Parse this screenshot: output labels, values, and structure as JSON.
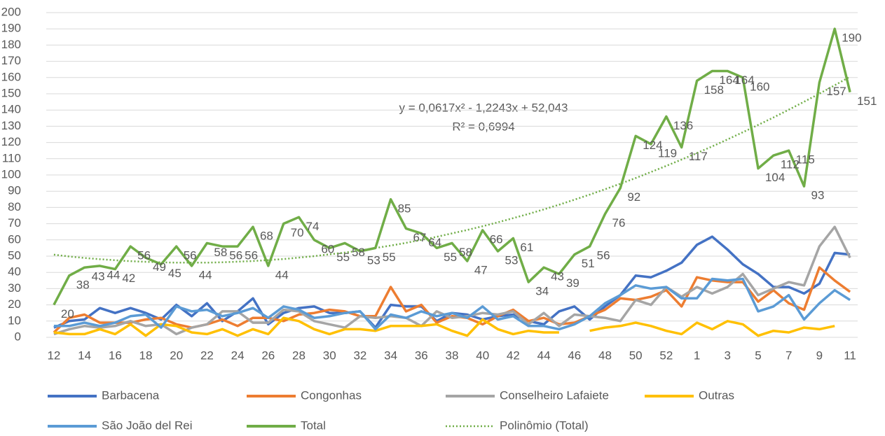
{
  "chart_data": {
    "type": "line",
    "categories": [
      "12",
      null,
      "14",
      null,
      "16",
      null,
      "18",
      null,
      "20",
      null,
      "22",
      null,
      "24",
      null,
      "26",
      null,
      "28",
      null,
      "30",
      null,
      "32",
      null,
      "34",
      null,
      "36",
      null,
      "38",
      null,
      "40",
      null,
      "42",
      null,
      "44",
      null,
      "46",
      null,
      "48",
      null,
      "50",
      null,
      "52",
      null,
      "1",
      null,
      "3",
      null,
      "5",
      null,
      "7",
      null,
      "9",
      null,
      "11"
    ],
    "ylim": [
      0,
      200
    ],
    "yticks": [
      0,
      10,
      20,
      30,
      40,
      50,
      60,
      70,
      80,
      90,
      100,
      110,
      120,
      130,
      140,
      150,
      160,
      170,
      180,
      190,
      200
    ],
    "grid": true,
    "series": [
      {
        "name": "Barbacena",
        "color": "#4472c4",
        "values": [
          6,
          10,
          11,
          18,
          15,
          18,
          15,
          11,
          20,
          13,
          21,
          10,
          16,
          24,
          8,
          15,
          18,
          19,
          15,
          15,
          16,
          6,
          20,
          19,
          19,
          10,
          15,
          14,
          11,
          13,
          14,
          10,
          8,
          16,
          19,
          11,
          19,
          26,
          38,
          37,
          41,
          46,
          57,
          62,
          54,
          45,
          39,
          31,
          31,
          27,
          33,
          52,
          51
        ]
      },
      {
        "name": "Congonhas",
        "color": "#ed7d31",
        "values": [
          3,
          12,
          14,
          9,
          9,
          9,
          11,
          12,
          8,
          6,
          8,
          11,
          7,
          12,
          12,
          10,
          14,
          15,
          17,
          16,
          13,
          13,
          31,
          16,
          20,
          9,
          13,
          12,
          8,
          13,
          17,
          10,
          12,
          8,
          9,
          13,
          17,
          24,
          23,
          25,
          29,
          19,
          37,
          35,
          34,
          34,
          22,
          29,
          21,
          17,
          43,
          35,
          28
        ]
      },
      {
        "name": "Conselheiro Lafaiete",
        "color": "#a5a5a5",
        "values": [
          2,
          5,
          7,
          6,
          7,
          10,
          7,
          8,
          2,
          6,
          8,
          16,
          16,
          9,
          9,
          17,
          16,
          10,
          8,
          6,
          13,
          12,
          13,
          12,
          7,
          16,
          12,
          13,
          15,
          14,
          16,
          8,
          15,
          7,
          14,
          13,
          12,
          10,
          23,
          20,
          31,
          25,
          31,
          27,
          31,
          39,
          26,
          30,
          34,
          32,
          56,
          68,
          49
        ]
      },
      {
        "name": "Outras",
        "color": "#ffc000",
        "values": [
          3,
          2,
          2,
          5,
          2,
          8,
          1,
          8,
          7,
          3,
          2,
          5,
          1,
          5,
          2,
          12,
          10,
          5,
          2,
          5,
          5,
          4,
          7,
          7,
          7,
          8,
          4,
          1,
          11,
          5,
          2,
          4,
          3,
          3,
          null,
          4,
          6,
          7,
          9,
          7,
          4,
          2,
          9,
          5,
          10,
          8,
          1,
          4,
          3,
          6,
          5,
          7,
          null
        ]
      },
      {
        "name": "São João del Rei",
        "color": "#5b9bd5",
        "values": [
          7,
          7,
          9,
          7,
          9,
          13,
          14,
          6,
          19,
          16,
          17,
          13,
          15,
          18,
          12,
          19,
          17,
          12,
          13,
          15,
          16,
          5,
          14,
          12,
          16,
          13,
          15,
          12,
          19,
          11,
          13,
          7,
          7,
          5,
          8,
          13,
          21,
          26,
          32,
          30,
          31,
          24,
          24,
          36,
          35,
          36,
          16,
          19,
          26,
          11,
          21,
          29,
          23
        ]
      },
      {
        "name": "Total",
        "color": "#70ad47",
        "data_labels": true,
        "values": [
          20,
          38,
          43,
          44,
          42,
          56,
          49,
          45,
          56,
          44,
          58,
          56,
          56,
          68,
          44,
          70,
          74,
          60,
          55,
          58,
          53,
          55,
          85,
          67,
          64,
          55,
          58,
          47,
          66,
          53,
          61,
          34,
          43,
          39,
          51,
          56,
          76,
          92,
          124,
          119,
          136,
          117,
          158,
          164,
          164,
          160,
          104,
          112,
          115,
          93,
          157,
          190,
          151
        ]
      },
      {
        "name": "Polinômio (Total)",
        "color": "#70ad47",
        "dotted": true,
        "values": [
          50.9,
          49.8,
          48.9,
          48.1,
          47.5,
          46.9,
          46.5,
          46.2,
          46.0,
          46.0,
          46.0,
          46.2,
          46.6,
          47.0,
          47.6,
          48.2,
          49.1,
          50.0,
          51.1,
          52.2,
          53.5,
          55.0,
          56.5,
          58.2,
          60.0,
          61.9,
          64.0,
          66.1,
          68.4,
          70.8,
          73.4,
          76.0,
          78.8,
          81.7,
          84.8,
          87.9,
          91.2,
          94.6,
          98.1,
          101.8,
          105.6,
          109.5,
          113.5,
          117.6,
          121.9,
          126.3,
          130.8,
          135.4,
          140.2,
          145.1,
          150.1,
          155.2,
          160.5
        ]
      }
    ],
    "annotations": [
      "y = 0,0617x² - 1,2243x + 52,043",
      "R² = 0,6994"
    ]
  }
}
